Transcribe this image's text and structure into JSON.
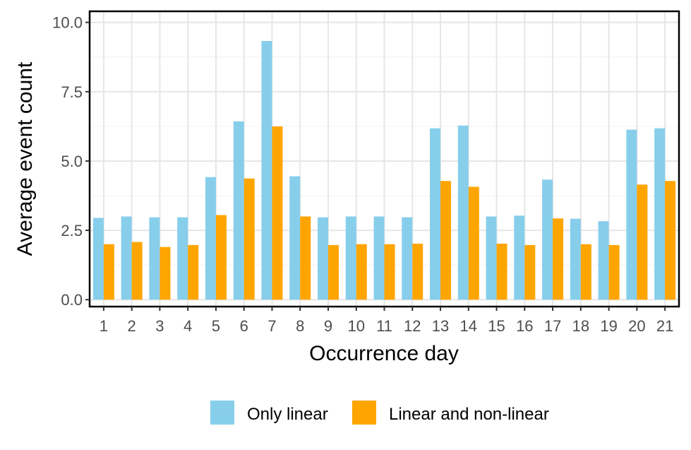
{
  "chart_data": {
    "type": "bar",
    "title": "",
    "xlabel": "Occurrence day",
    "ylabel": "Average event count",
    "categories": [
      "1",
      "2",
      "3",
      "4",
      "5",
      "6",
      "7",
      "8",
      "9",
      "10",
      "11",
      "12",
      "13",
      "14",
      "15",
      "16",
      "17",
      "18",
      "19",
      "20",
      "21"
    ],
    "series": [
      {
        "name": "Only linear",
        "color": "#87CEEB",
        "values": [
          2.95,
          3.0,
          2.97,
          2.97,
          4.42,
          6.43,
          9.33,
          4.45,
          2.97,
          3.0,
          3.0,
          2.97,
          6.18,
          6.28,
          3.0,
          3.03,
          4.33,
          2.92,
          2.83,
          6.13,
          6.18
        ]
      },
      {
        "name": "Linear and non-linear",
        "color": "#FFA500",
        "values": [
          2.0,
          2.08,
          1.9,
          1.97,
          3.05,
          4.37,
          6.25,
          3.0,
          1.97,
          2.0,
          2.0,
          2.02,
          4.28,
          4.07,
          2.02,
          1.97,
          2.93,
          2.0,
          1.97,
          4.15,
          4.28
        ]
      }
    ],
    "ylim": [
      -0.25,
      10.4
    ],
    "yticks": [
      "0.0",
      "2.5",
      "5.0",
      "7.5",
      "10.0"
    ],
    "ytick_values": [
      0,
      2.5,
      5,
      7.5,
      10
    ],
    "grid": true,
    "legend_position": "bottom"
  }
}
